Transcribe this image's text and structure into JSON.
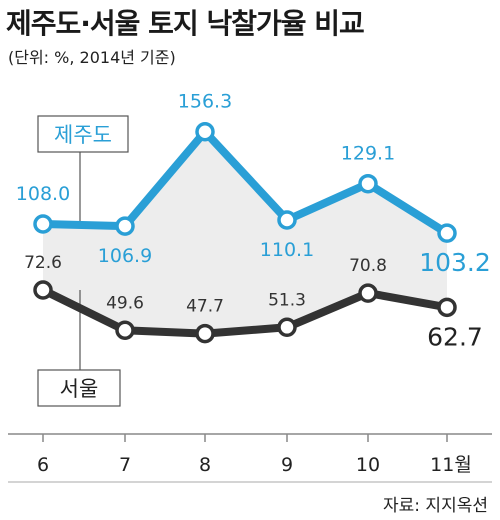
{
  "title": "제주도·서울 토지 낙찰가율 비교",
  "subtitle": "(단위: %, 2014년 기준)",
  "source": "자료: 지지옥션",
  "colors": {
    "jeju": "#2a9fd6",
    "seoul": "#333333",
    "area": "#ededed",
    "axis": "#555555"
  },
  "chart_data": {
    "type": "line",
    "categories": [
      "6",
      "7",
      "8",
      "9",
      "10",
      "11월"
    ],
    "series": [
      {
        "name": "제주도",
        "values": [
          108.0,
          106.9,
          156.3,
          110.1,
          129.1,
          103.2
        ],
        "labels": [
          "108.0",
          "106.9",
          "156.3",
          "110.1",
          "129.1",
          "103.2"
        ]
      },
      {
        "name": "서울",
        "values": [
          72.6,
          49.6,
          47.7,
          51.3,
          70.8,
          62.7
        ],
        "labels": [
          "72.6",
          "49.6",
          "47.7",
          "51.3",
          "70.8",
          "62.7"
        ]
      }
    ],
    "xlabel": "",
    "ylabel": ""
  }
}
